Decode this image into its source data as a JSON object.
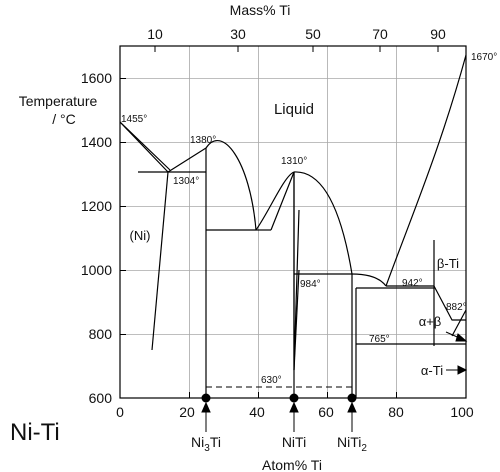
{
  "title": "Ni-Ti",
  "axes": {
    "ylabel_line1": "Temperature",
    "ylabel_line2": "/ °C",
    "top_xlabel": "Mass% Ti",
    "bottom_xlabel": "Atom% Ti",
    "y_ticks": [
      600,
      800,
      1000,
      1200,
      1400,
      1600
    ],
    "bottom_x_ticks": [
      0,
      20,
      40,
      60,
      80,
      100
    ],
    "top_x_ticks": [
      10,
      30,
      50,
      70,
      90
    ],
    "x_range": [
      0,
      100
    ],
    "y_range": [
      600,
      1700
    ]
  },
  "phases": {
    "liquid": "Liquid",
    "ni": "(Ni)",
    "beta_ti": "β-Ti",
    "alpha_beta": "α+β",
    "alpha_ti": "α-Ti"
  },
  "temperatures": {
    "t1455": "1455°",
    "t1670": "1670°",
    "t1380": "1380°",
    "t1304": "1304°",
    "t1310": "1310°",
    "t984": "984°",
    "t942": "942°",
    "t882": "882°",
    "t765": "765°",
    "t630": "630°"
  },
  "compounds": {
    "ni3ti_base": "Ni",
    "ni3ti_sub": "3",
    "ni3ti_tail": "Ti",
    "niti": "NiTi",
    "niti2_base": "NiTi",
    "niti2_sub": "2"
  },
  "chart_data": {
    "type": "phase-diagram",
    "title": "Ni-Ti",
    "xlabel": "Atom% Ti",
    "x2label": "Mass% Ti",
    "ylabel": "Temperature / °C",
    "xlim": [
      0,
      100
    ],
    "ylim": [
      600,
      1700
    ],
    "compositions": [
      {
        "name": "Ni3Ti",
        "x": 25
      },
      {
        "name": "NiTi",
        "x": 50
      },
      {
        "name": "NiTi2",
        "x": 66.7
      }
    ],
    "invariants": [
      {
        "label": "1455°",
        "x": 0,
        "y": 1455
      },
      {
        "label": "1670°",
        "x": 100,
        "y": 1670
      },
      {
        "label": "1380°",
        "x": 25,
        "y": 1380
      },
      {
        "label": "1304°",
        "x": 14,
        "y": 1304
      },
      {
        "label": "1310°",
        "x": 50,
        "y": 1310
      },
      {
        "label": "984°",
        "x": 66.7,
        "y": 984
      },
      {
        "label": "942°",
        "x": 76,
        "y": 942
      },
      {
        "label": "882°",
        "x": 100,
        "y": 882
      },
      {
        "label": "765°",
        "x": 98,
        "y": 765
      },
      {
        "label": "630°",
        "x": 50,
        "y": 630
      }
    ]
  }
}
